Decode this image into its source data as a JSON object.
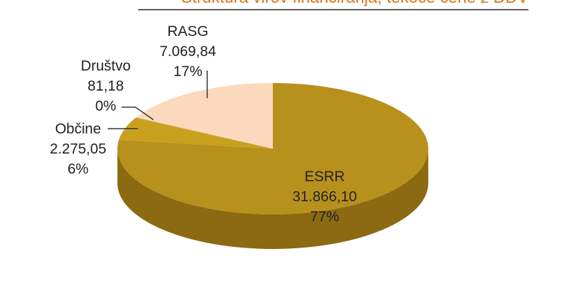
{
  "chart_data": {
    "type": "pie",
    "title": "Struktura virov financiranja, tekoče cene z DDV",
    "categories": [
      "ESRR",
      "Občine",
      "Društvo",
      "RASG"
    ],
    "values": [
      31866.1,
      2275.05,
      81.18,
      7069.84
    ],
    "value_labels": [
      "31.866,10",
      "2.275,05",
      "81,18",
      "7.069,84"
    ],
    "percentages": [
      77,
      6,
      0,
      17
    ],
    "percentage_labels": [
      "77%",
      "6%",
      "0%",
      "17%"
    ],
    "colors": [
      "#b8901c",
      "#c9a01e",
      "#c49a20",
      "#fad9bc"
    ]
  }
}
